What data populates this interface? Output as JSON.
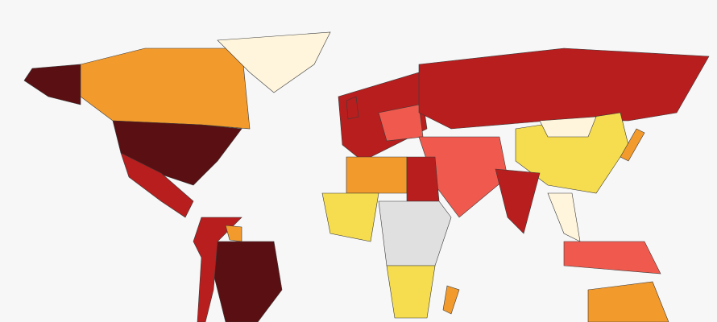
{
  "map": {
    "background": "#f7f7f7",
    "border": "#3a3a3a",
    "regions": [
      {
        "color": "#5a0f12"
      },
      {
        "color": "#f39a2c"
      },
      {
        "color": "#fff5dc"
      },
      {
        "color": "#5a0f12"
      },
      {
        "color": "#b81e1e"
      },
      {
        "color": "#5a0f12"
      },
      {
        "color": "#b81e1e"
      },
      {
        "color": "#f39a2c"
      },
      {
        "color": "#b81e1e"
      },
      {
        "color": "#f05a4e"
      },
      {
        "color": "#b81e1e"
      },
      {
        "color": "#f6dd4f"
      },
      {
        "color": "#fff5dc"
      },
      {
        "color": "#f05a4e"
      },
      {
        "color": "#b81e1e"
      },
      {
        "color": "#f39a2c"
      },
      {
        "color": "#b81e1e"
      },
      {
        "color": "#f6dd4f"
      },
      {
        "color": "#e0e0e0"
      },
      {
        "color": "#f6dd4f"
      },
      {
        "color": "#f39a2c"
      },
      {
        "color": "#fff5dc"
      },
      {
        "color": "#f05a4e"
      },
      {
        "color": "#f39a2c"
      },
      {
        "color": "#f39a2c"
      },
      {
        "color": "#b81e1e"
      }
    ]
  }
}
